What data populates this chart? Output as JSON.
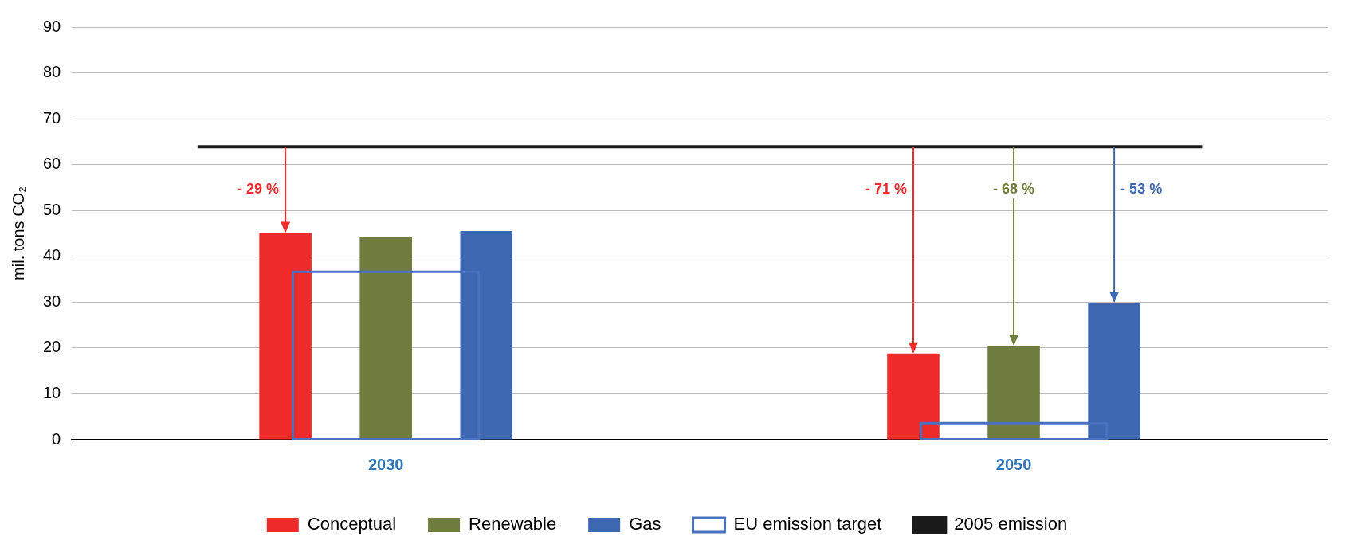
{
  "chart_data": {
    "type": "bar",
    "ylabel": "mil. tons CO₂",
    "categories": [
      "2030",
      "2050"
    ],
    "series": [
      {
        "name": "Conceptual",
        "color": "#ee2a2a",
        "values": [
          45.1,
          18.8
        ]
      },
      {
        "name": "Renewable",
        "color": "#6e7d3e",
        "values": [
          44.3,
          20.5
        ]
      },
      {
        "name": "Gas",
        "color": "#3d67b1",
        "values": [
          45.5,
          29.9
        ]
      },
      {
        "name": "EU emission target",
        "color": "#4a72c0",
        "values": [
          36.6,
          3.6
        ],
        "line_style": "solid"
      }
    ],
    "ylim": [
      0,
      90
    ],
    "yticks": [
      0,
      10,
      20,
      30,
      40,
      50,
      60,
      70,
      80,
      90
    ],
    "grid": "y",
    "legend": "bottom",
    "ref_lines": [
      {
        "axis": "y",
        "value": 63.9,
        "label": "2005 emission",
        "color": "#1a1a1a"
      }
    ],
    "annotations": [
      "- 29 %",
      "- 71 %",
      "- 68 %",
      "- 53 %"
    ]
  }
}
